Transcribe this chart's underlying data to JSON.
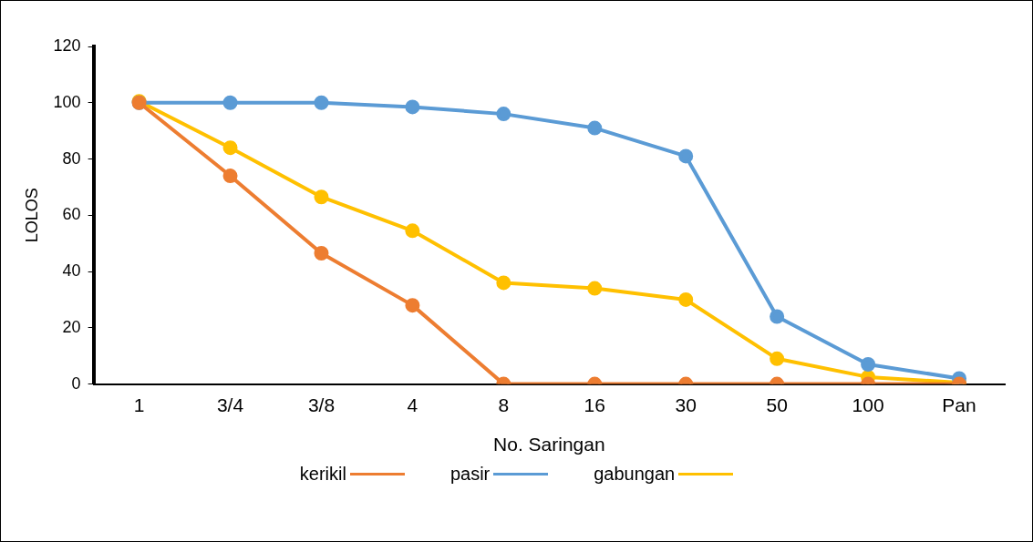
{
  "chart_data": {
    "type": "line",
    "xlabel": "No. Saringan",
    "ylabel": "LOLOS",
    "categories": [
      "1",
      "3/4",
      "3/8",
      "4",
      "8",
      "16",
      "30",
      "50",
      "100",
      "Pan"
    ],
    "ylim": [
      0,
      120
    ],
    "yticks": [
      0,
      20,
      40,
      60,
      80,
      100,
      120
    ],
    "grid": false,
    "legend": "bottom",
    "marker": "circle",
    "line_style": "solid",
    "series": [
      {
        "name": "kerikil",
        "color": "#ed7d31",
        "values": [
          100,
          74,
          46.5,
          28,
          0,
          0,
          0,
          0,
          0,
          0
        ]
      },
      {
        "name": "pasir",
        "color": "#5b9bd5",
        "values": [
          100,
          100,
          100,
          98.5,
          96,
          91,
          81,
          24,
          7,
          2
        ]
      },
      {
        "name": "gabungan",
        "color": "#ffc000",
        "values": [
          100.5,
          84,
          66.5,
          54.5,
          36,
          34,
          30,
          9,
          2.5,
          0.5
        ]
      }
    ]
  }
}
